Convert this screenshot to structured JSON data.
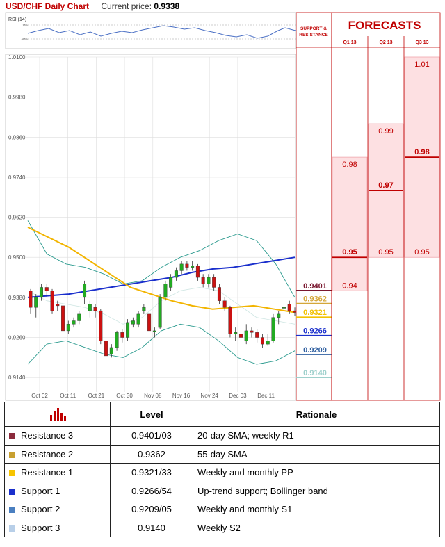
{
  "header": {
    "title": "USD/CHF Daily Chart",
    "price_label": "Current price:",
    "price_value": "0.9338"
  },
  "rsi": {
    "label": "RSI (14)",
    "levels": [
      "70%",
      "30%"
    ]
  },
  "chart_data": {
    "type": "candlestick",
    "title": "USD/CHF Daily Chart",
    "y_ticks": [
      "1.0100",
      "0.9980",
      "0.9860",
      "0.9740",
      "0.9620",
      "0.9500",
      "0.9380",
      "0.9260",
      "0.9140"
    ],
    "ylim": [
      0.908,
      1.01
    ],
    "x_ticks": [
      "Oct 02",
      "Oct 11",
      "Oct 21",
      "Oct 30",
      "Nov 08",
      "Nov 16",
      "Nov 24",
      "Dec 03",
      "Dec 11"
    ],
    "candles": [
      [
        0.94,
        0.935,
        0.9405,
        0.933
      ],
      [
        0.935,
        0.938,
        0.939,
        0.932
      ],
      [
        0.938,
        0.941,
        0.942,
        0.937
      ],
      [
        0.941,
        0.94,
        0.942,
        0.938
      ],
      [
        0.94,
        0.934,
        0.9405,
        0.933
      ],
      [
        0.936,
        0.9355,
        0.937,
        0.934
      ],
      [
        0.9355,
        0.928,
        0.936,
        0.927
      ],
      [
        0.928,
        0.93,
        0.931,
        0.927
      ],
      [
        0.93,
        0.931,
        0.932,
        0.929
      ],
      [
        0.931,
        0.933,
        0.934,
        0.93
      ],
      [
        0.938,
        0.942,
        0.943,
        0.936
      ],
      [
        0.934,
        0.936,
        0.937,
        0.932
      ],
      [
        0.935,
        0.934,
        0.936,
        0.932
      ],
      [
        0.934,
        0.925,
        0.9345,
        0.924
      ],
      [
        0.925,
        0.9205,
        0.926,
        0.9195
      ],
      [
        0.921,
        0.923,
        0.924,
        0.92
      ],
      [
        0.923,
        0.9275,
        0.928,
        0.922
      ],
      [
        0.9275,
        0.926,
        0.9285,
        0.9245
      ],
      [
        0.926,
        0.9305,
        0.9315,
        0.925
      ],
      [
        0.93,
        0.931,
        0.932,
        0.929
      ],
      [
        0.93,
        0.933,
        0.934,
        0.929
      ],
      [
        0.934,
        0.935,
        0.936,
        0.933
      ],
      [
        0.933,
        0.928,
        0.934,
        0.927
      ],
      [
        0.928,
        0.928,
        0.929,
        0.926
      ],
      [
        0.929,
        0.938,
        0.939,
        0.9285
      ],
      [
        0.938,
        0.942,
        0.943,
        0.937
      ],
      [
        0.941,
        0.944,
        0.945,
        0.94
      ],
      [
        0.944,
        0.946,
        0.947,
        0.943
      ],
      [
        0.946,
        0.948,
        0.949,
        0.945
      ],
      [
        0.948,
        0.947,
        0.949,
        0.946
      ],
      [
        0.947,
        0.9475,
        0.949,
        0.946
      ],
      [
        0.9475,
        0.944,
        0.948,
        0.943
      ],
      [
        0.944,
        0.942,
        0.945,
        0.941
      ],
      [
        0.942,
        0.944,
        0.945,
        0.941
      ],
      [
        0.944,
        0.941,
        0.945,
        0.94
      ],
      [
        0.941,
        0.937,
        0.942,
        0.936
      ],
      [
        0.937,
        0.935,
        0.938,
        0.934
      ],
      [
        0.935,
        0.927,
        0.9355,
        0.926
      ],
      [
        0.927,
        0.9275,
        0.929,
        0.925
      ],
      [
        0.927,
        0.926,
        0.928,
        0.924
      ],
      [
        0.925,
        0.928,
        0.93,
        0.924
      ],
      [
        0.928,
        0.9275,
        0.929,
        0.926
      ],
      [
        0.9275,
        0.926,
        0.9285,
        0.9245
      ],
      [
        0.926,
        0.924,
        0.927,
        0.923
      ],
      [
        0.924,
        0.925,
        0.927,
        0.9235
      ],
      [
        0.925,
        0.932,
        0.933,
        0.9245
      ],
      [
        0.932,
        0.933,
        0.934,
        0.93
      ],
      [
        0.935,
        0.935,
        0.936,
        0.933
      ],
      [
        0.936,
        0.934,
        0.937,
        0.933
      ],
      [
        0.934,
        0.9335,
        0.935,
        0.9325
      ]
    ],
    "moving_averages": [
      {
        "name": "20-day SMA",
        "color": "#1a2fcc",
        "values": [
          0.938,
          0.9385,
          0.939,
          0.94,
          0.941,
          0.942,
          0.943,
          0.944,
          0.9455,
          0.9465,
          0.947,
          0.948,
          0.949,
          0.95
        ]
      },
      {
        "name": "55-day SMA",
        "color": "#f2b400",
        "values": [
          0.959,
          0.956,
          0.953,
          0.949,
          0.945,
          0.941,
          0.939,
          0.937,
          0.9355,
          0.9345,
          0.935,
          0.9355,
          0.9345,
          0.9335
        ]
      }
    ],
    "bollinger": {
      "color": "#2a9a8e",
      "upper": [
        0.961,
        0.951,
        0.948,
        0.947,
        0.945,
        0.942,
        0.943,
        0.947,
        0.95,
        0.952,
        0.955,
        0.957,
        0.955,
        0.948,
        0.938
      ],
      "middle": [
        0.94,
        0.937,
        0.936,
        0.935,
        0.933,
        0.93,
        0.932,
        0.937,
        0.94,
        0.941,
        0.94,
        0.936,
        0.932,
        0.931,
        0.93
      ],
      "lower": [
        0.918,
        0.924,
        0.925,
        0.923,
        0.921,
        0.92,
        0.923,
        0.928,
        0.93,
        0.929,
        0.925,
        0.92,
        0.918,
        0.919,
        0.922
      ]
    }
  },
  "levels": {
    "panel_title": "SUPPORT & RESISTANCE",
    "items": [
      {
        "label": "0.9401",
        "value": 0.9401,
        "color": "#7a1830"
      },
      {
        "label": "0.9362",
        "value": 0.9362,
        "color": "#d4a73a"
      },
      {
        "label": "0.9321",
        "value": 0.9321,
        "color": "#f2c200"
      },
      {
        "label": "0.9266",
        "value": 0.9266,
        "color": "#1a2fcc"
      },
      {
        "label": "0.9209",
        "value": 0.9209,
        "color": "#2f5fa0"
      },
      {
        "label": "0.9140",
        "value": 0.914,
        "color": "#9ed0cc"
      }
    ]
  },
  "forecasts": {
    "title": "FORECASTS",
    "columns": [
      {
        "label": "Q1 13",
        "values": [
          {
            "label": "0.98",
            "value": 0.98,
            "bold": false
          },
          {
            "label": "0.95",
            "value": 0.95,
            "bold": true
          },
          {
            "label": "0.94",
            "value": 0.94,
            "bold": false
          }
        ]
      },
      {
        "label": "Q2 13",
        "values": [
          {
            "label": "0.99",
            "value": 0.99,
            "bold": false
          },
          {
            "label": "0.97",
            "value": 0.97,
            "bold": true
          },
          {
            "label": "0.95",
            "value": 0.95,
            "bold": false
          }
        ]
      },
      {
        "label": "Q3 13",
        "values": [
          {
            "label": "1.01",
            "value": 1.01,
            "bold": false
          },
          {
            "label": "0.98",
            "value": 0.98,
            "bold": true
          },
          {
            "label": "0.95",
            "value": 0.95,
            "bold": false
          }
        ]
      }
    ]
  },
  "table": {
    "headers": {
      "level": "Level",
      "rationale": "Rationale"
    },
    "rows": [
      {
        "name": "Resistance 3",
        "color": "#8b2a3c",
        "level": "0.9401/03",
        "rationale": "20-day SMA; weekly R1"
      },
      {
        "name": "Resistance 2",
        "color": "#c8a030",
        "level": "0.9362",
        "rationale": "55-day SMA"
      },
      {
        "name": "Resistance 1",
        "color": "#f7c400",
        "level": "0.9321/33",
        "rationale": "Weekly and monthly PP"
      },
      {
        "name": "Support 1",
        "color": "#1a2fcc",
        "level": "0.9266/54",
        "rationale": "Up-trend support; Bollinger band"
      },
      {
        "name": "Support 2",
        "color": "#4a7fc0",
        "level": "0.9209/05",
        "rationale": "Weekly and monthly S1"
      },
      {
        "name": "Support 3",
        "color": "#b8cfe8",
        "level": "0.9140",
        "rationale": "Weekly S2"
      }
    ]
  }
}
